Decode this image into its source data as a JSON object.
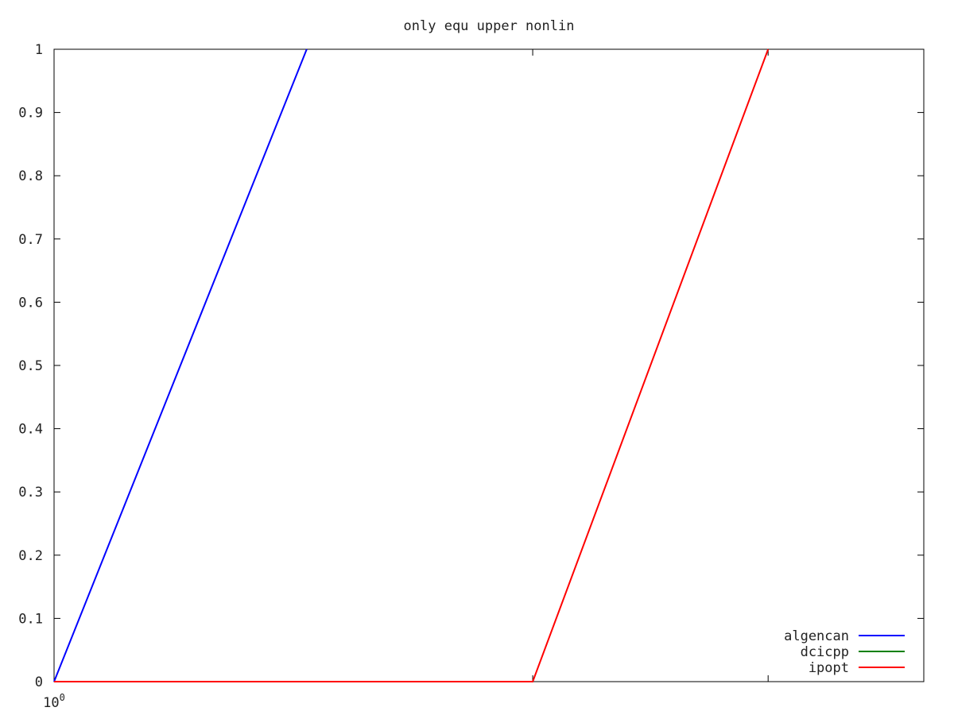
{
  "chart_data": {
    "type": "line",
    "title": "only equ upper nonlin",
    "xlabel": "",
    "ylabel": "",
    "xscale": "log",
    "xlim": [
      1,
      1.5
    ],
    "ylim": [
      0,
      1
    ],
    "grid": false,
    "legend_position": "bottom-right",
    "x_tick_labels": [
      {
        "base": "10",
        "exp": "0"
      }
    ],
    "y_ticks": [
      0,
      0.1,
      0.2,
      0.3,
      0.4,
      0.5,
      0.6,
      0.7,
      0.8,
      0.9,
      1
    ],
    "y_tick_labels": [
      "0",
      "0.1",
      "0.2",
      "0.3",
      "0.4",
      "0.5",
      "0.6",
      "0.7",
      "0.8",
      "0.9",
      "1"
    ],
    "series": [
      {
        "name": "algencan",
        "color": "#0000ff",
        "x": [
          1,
          1.125
        ],
        "y": [
          0,
          1
        ]
      },
      {
        "name": "dcicpp",
        "color": "#008000",
        "x": [],
        "y": []
      },
      {
        "name": "ipopt",
        "color": "#ff0000",
        "x": [
          1,
          1.25,
          1.395
        ],
        "y": [
          0,
          0,
          1
        ]
      }
    ]
  }
}
